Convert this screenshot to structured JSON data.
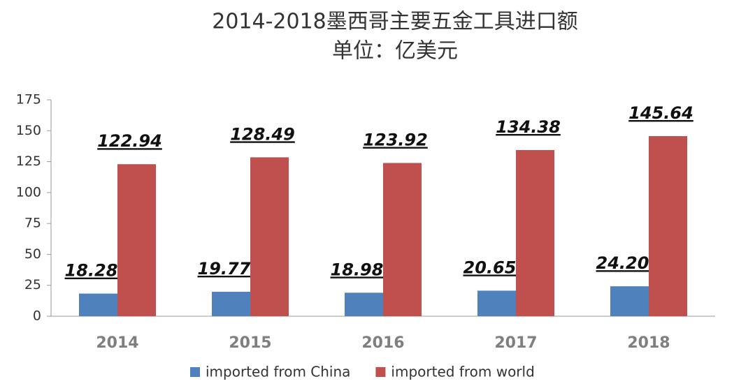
{
  "chart_data": {
    "type": "bar",
    "title": "2014-2018墨西哥主要五金工具进口额",
    "subtitle": "单位：亿美元",
    "categories": [
      "2014",
      "2015",
      "2016",
      "2017",
      "2018"
    ],
    "series": [
      {
        "name": "imported from China",
        "color": "#4f81bd",
        "values": [
          18.28,
          19.77,
          18.98,
          20.65,
          24.2
        ],
        "value_labels": [
          "18.28",
          "19.77",
          "18.98",
          "20.65",
          "24.20"
        ]
      },
      {
        "name": "imported from world",
        "color": "#c0504d",
        "values": [
          122.94,
          128.49,
          123.92,
          134.38,
          145.64
        ],
        "value_labels": [
          "122.94",
          "128.49",
          "123.92",
          "134.38",
          "145.64"
        ]
      }
    ],
    "ylim": [
      0,
      175
    ],
    "yticks": [
      0,
      25,
      50,
      75,
      100,
      125,
      150,
      175
    ],
    "grid": false,
    "legend": "bottom"
  }
}
